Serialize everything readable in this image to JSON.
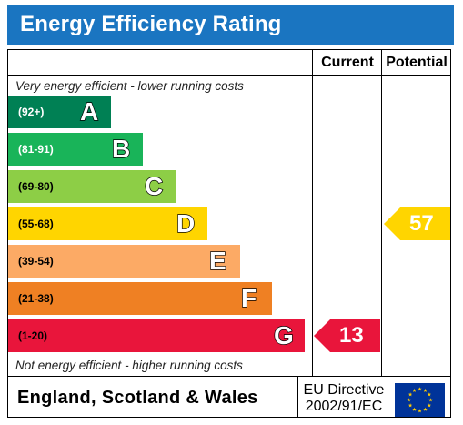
{
  "header": {
    "title": "Energy Efficiency Rating"
  },
  "columns": {
    "current": "Current",
    "potential": "Potential"
  },
  "notes": {
    "top": "Very energy efficient - lower running costs",
    "bottom": "Not energy efficient - higher running costs"
  },
  "footer": {
    "country": "England, Scotland & Wales",
    "directive_line1": "EU Directive",
    "directive_line2": "2002/91/EC"
  },
  "chart_data": {
    "type": "bar",
    "title": "Energy Efficiency Rating",
    "bands": [
      {
        "letter": "A",
        "range": "(92+)",
        "color": "#008054",
        "text_color": "#ffffff"
      },
      {
        "letter": "B",
        "range": "(81-91)",
        "color": "#19b459",
        "text_color": "#ffffff"
      },
      {
        "letter": "C",
        "range": "(69-80)",
        "color": "#8dce46",
        "text_color": "#000000"
      },
      {
        "letter": "D",
        "range": "(55-68)",
        "color": "#ffd500",
        "text_color": "#000000"
      },
      {
        "letter": "E",
        "range": "(39-54)",
        "color": "#fcaa65",
        "text_color": "#000000"
      },
      {
        "letter": "F",
        "range": "(21-38)",
        "color": "#ef8023",
        "text_color": "#000000"
      },
      {
        "letter": "G",
        "range": "(1-20)",
        "color": "#e9153b",
        "text_color": "#000000"
      }
    ],
    "ratings": {
      "current": {
        "value": "13",
        "band": "G",
        "color": "#e9153b"
      },
      "potential": {
        "value": "57",
        "band": "D",
        "color": "#ffd500"
      }
    }
  }
}
